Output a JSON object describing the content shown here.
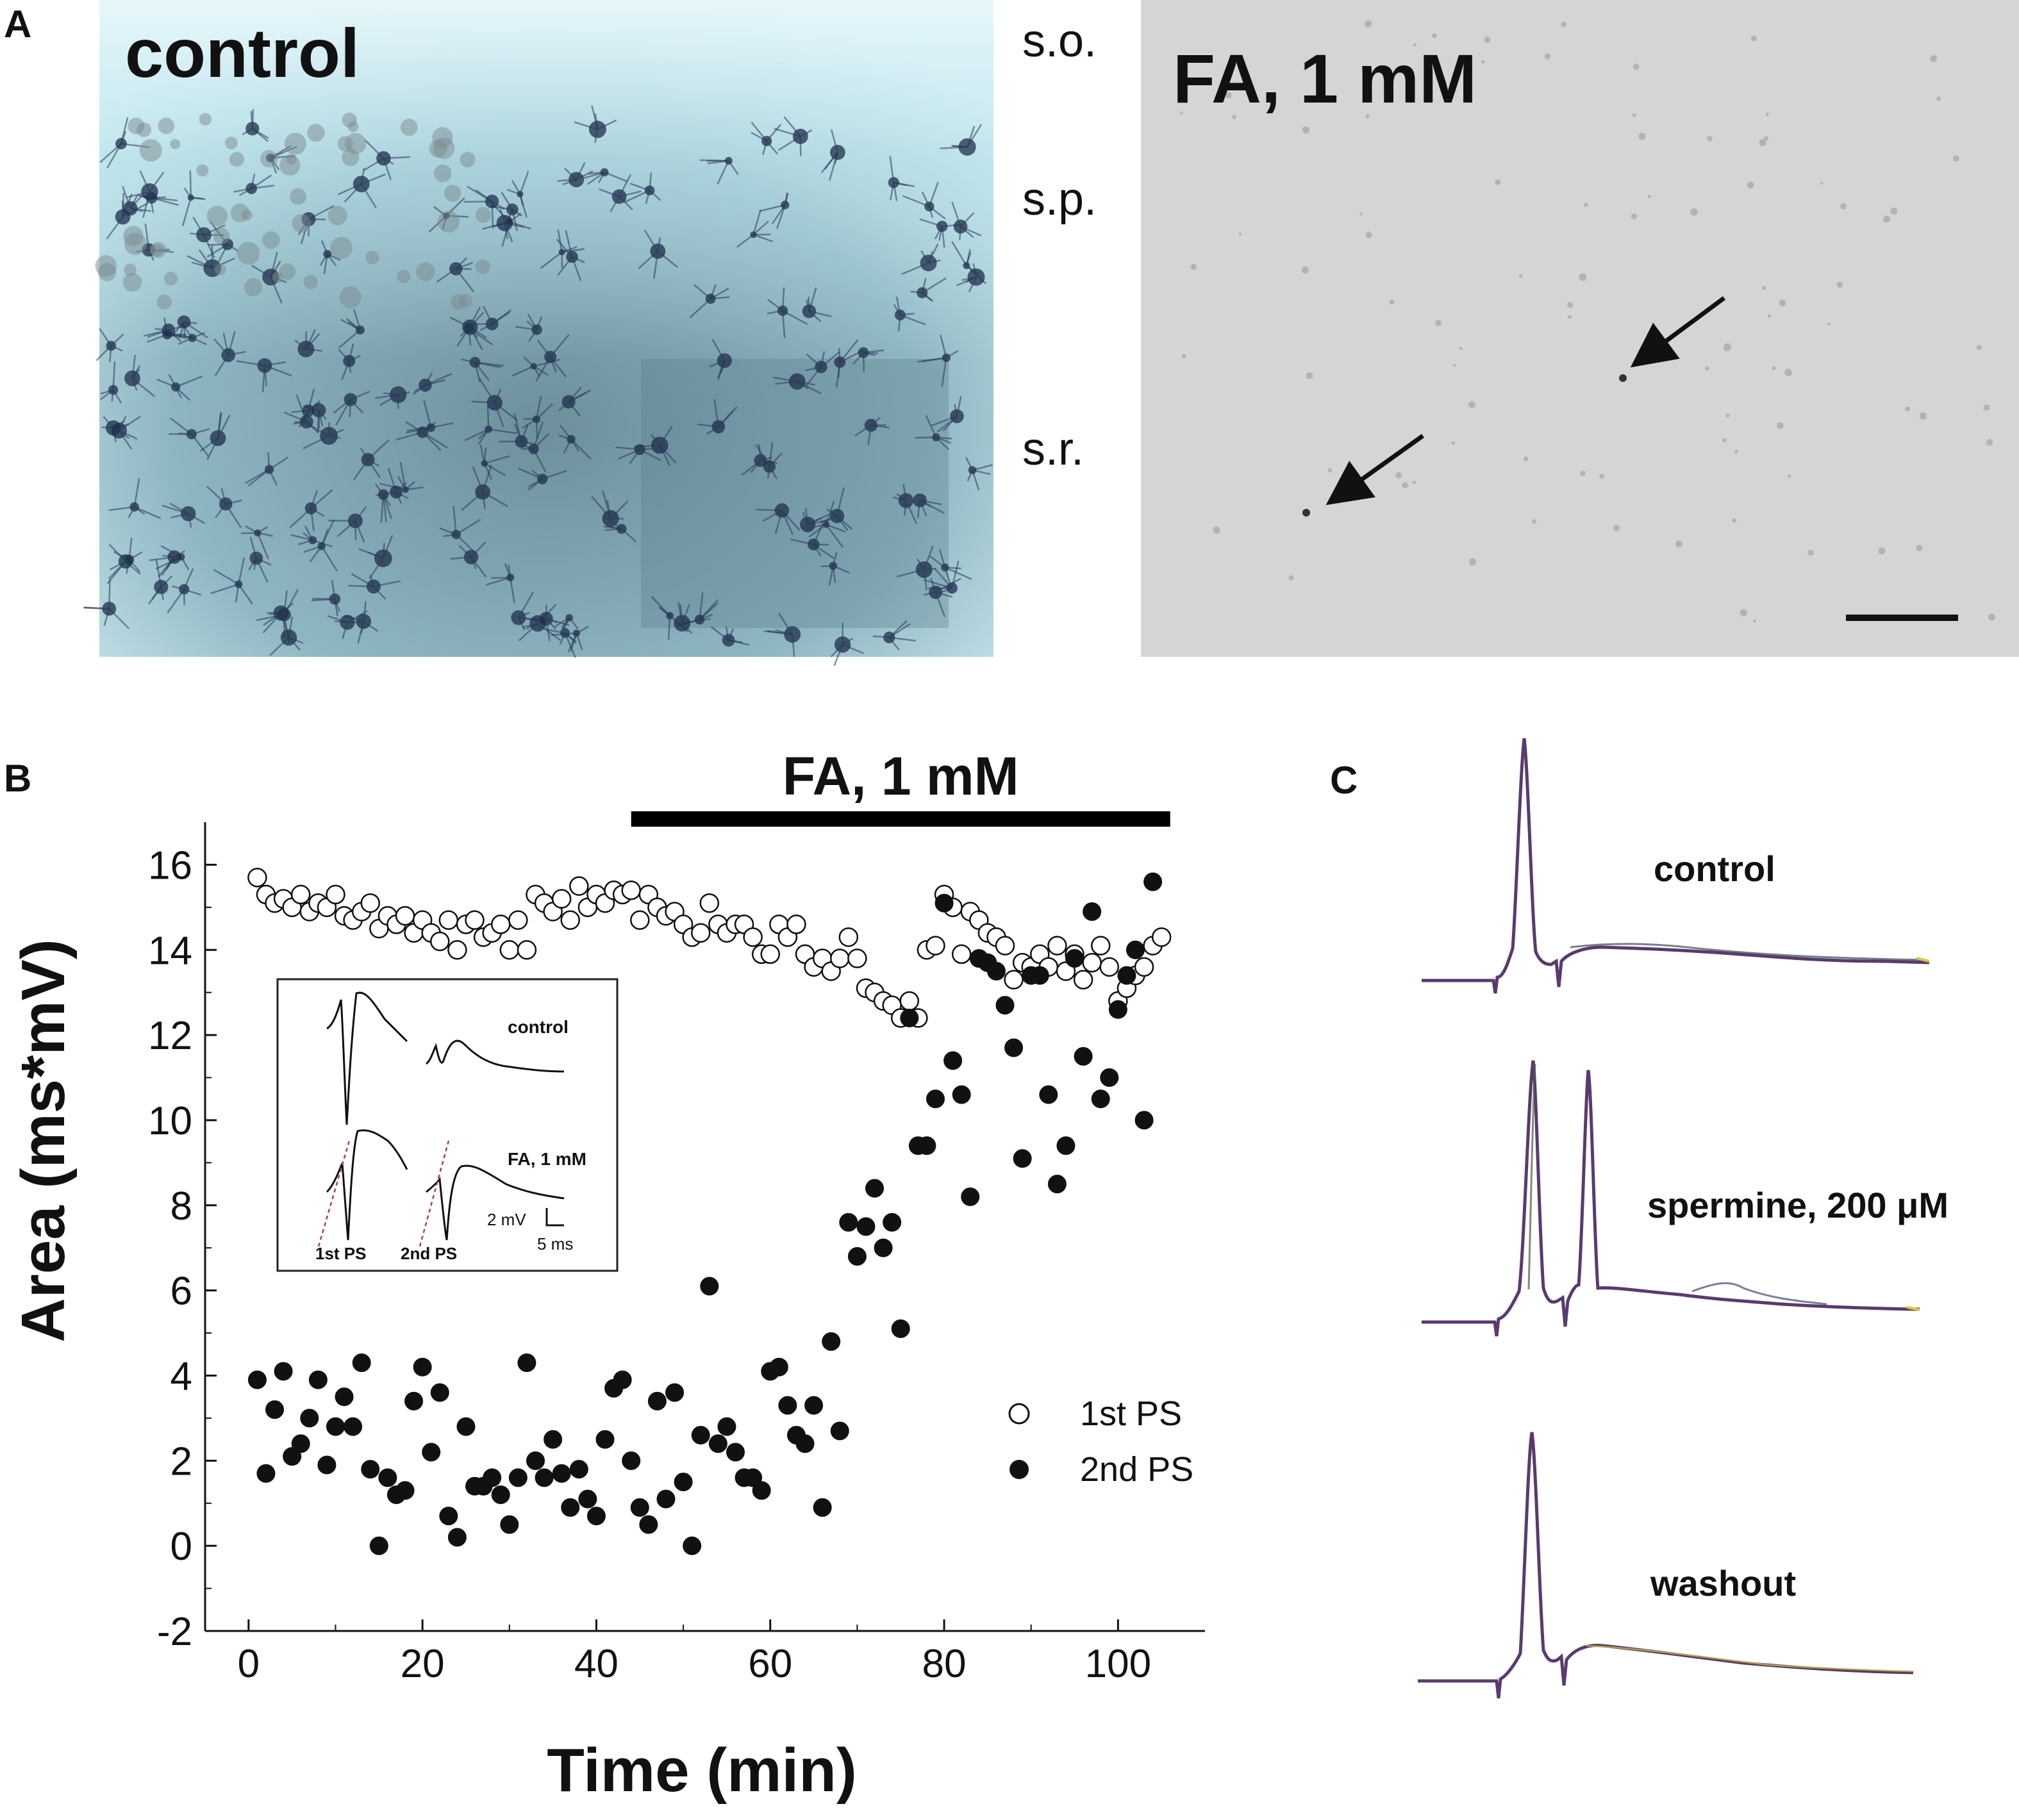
{
  "panels": {
    "A": {
      "letter": "A",
      "left_label": "control",
      "right_label": "FA, 1 mM",
      "layers": [
        "s.o.",
        "s.p.",
        "s.r."
      ]
    },
    "B": {
      "letter": "B",
      "bar_label": "FA, 1 mM",
      "inset": {
        "control_label": "control",
        "fa_label": "FA, 1 mM",
        "first_label": "1st PS",
        "second_label": "2nd PS",
        "scale_mv": "2 mV",
        "scale_ms": "5 ms"
      }
    },
    "C": {
      "letter": "C",
      "trace_labels": [
        "control",
        "spermine, 200 μM",
        "washout"
      ]
    }
  },
  "colors": {
    "trace": "#5a3a6e",
    "control_tissue": "#6f98a8",
    "fa_tissue": "#d6d6d6"
  },
  "chart_data": {
    "type": "scatter",
    "xlabel": "Time (min)",
    "ylabel": "Area (ms*mV)",
    "xlim": [
      -5,
      110
    ],
    "ylim": [
      -2,
      17
    ],
    "xticks": [
      0,
      20,
      40,
      60,
      80,
      100
    ],
    "yticks": [
      -2,
      0,
      2,
      4,
      6,
      8,
      10,
      12,
      14,
      16
    ],
    "treatment_bar": {
      "label": "FA, 1 mM",
      "start": 44,
      "end": 106
    },
    "legend_position": "bottom-right",
    "series": [
      {
        "name": "1st PS",
        "marker": "open-circle",
        "points": [
          [
            1,
            15.7
          ],
          [
            2,
            15.3
          ],
          [
            3,
            15.1
          ],
          [
            4,
            15.2
          ],
          [
            5,
            15.0
          ],
          [
            6,
            15.3
          ],
          [
            7,
            14.9
          ],
          [
            8,
            15.1
          ],
          [
            9,
            15.0
          ],
          [
            10,
            15.3
          ],
          [
            11,
            14.8
          ],
          [
            12,
            14.7
          ],
          [
            13,
            14.9
          ],
          [
            14,
            15.1
          ],
          [
            15,
            14.5
          ],
          [
            16,
            14.8
          ],
          [
            17,
            14.6
          ],
          [
            18,
            14.8
          ],
          [
            19,
            14.4
          ],
          [
            20,
            14.7
          ],
          [
            21,
            14.4
          ],
          [
            22,
            14.2
          ],
          [
            23,
            14.7
          ],
          [
            24,
            14.0
          ],
          [
            25,
            14.6
          ],
          [
            26,
            14.7
          ],
          [
            27,
            14.3
          ],
          [
            28,
            14.4
          ],
          [
            29,
            14.6
          ],
          [
            30,
            14.0
          ],
          [
            31,
            14.7
          ],
          [
            32,
            14.0
          ],
          [
            33,
            15.3
          ],
          [
            34,
            15.1
          ],
          [
            35,
            14.9
          ],
          [
            36,
            15.2
          ],
          [
            37,
            14.7
          ],
          [
            38,
            15.5
          ],
          [
            39,
            15.0
          ],
          [
            40,
            15.3
          ],
          [
            41,
            15.1
          ],
          [
            42,
            15.4
          ],
          [
            43,
            15.3
          ],
          [
            44,
            15.4
          ],
          [
            45,
            14.7
          ],
          [
            46,
            15.3
          ],
          [
            47,
            15.0
          ],
          [
            48,
            14.8
          ],
          [
            49,
            14.9
          ],
          [
            50,
            14.6
          ],
          [
            51,
            14.3
          ],
          [
            52,
            14.4
          ],
          [
            53,
            15.1
          ],
          [
            54,
            14.6
          ],
          [
            55,
            14.4
          ],
          [
            56,
            14.6
          ],
          [
            57,
            14.6
          ],
          [
            58,
            14.3
          ],
          [
            59,
            13.9
          ],
          [
            60,
            13.9
          ],
          [
            61,
            14.6
          ],
          [
            62,
            14.3
          ],
          [
            63,
            14.6
          ],
          [
            64,
            13.9
          ],
          [
            65,
            13.6
          ],
          [
            66,
            13.8
          ],
          [
            67,
            13.5
          ],
          [
            68,
            13.8
          ],
          [
            69,
            14.3
          ],
          [
            70,
            13.8
          ],
          [
            71,
            13.1
          ],
          [
            72,
            13.0
          ],
          [
            73,
            12.8
          ],
          [
            74,
            12.7
          ],
          [
            75,
            12.4
          ],
          [
            76,
            12.8
          ],
          [
            77,
            12.4
          ],
          [
            78,
            14.0
          ],
          [
            79,
            14.1
          ],
          [
            80,
            15.3
          ],
          [
            81,
            15.0
          ],
          [
            82,
            13.9
          ],
          [
            83,
            14.9
          ],
          [
            84,
            14.7
          ],
          [
            85,
            14.4
          ],
          [
            86,
            14.3
          ],
          [
            87,
            14.1
          ],
          [
            88,
            13.3
          ],
          [
            89,
            13.7
          ],
          [
            90,
            13.6
          ],
          [
            91,
            13.9
          ],
          [
            92,
            13.6
          ],
          [
            93,
            14.1
          ],
          [
            94,
            13.5
          ],
          [
            95,
            13.9
          ],
          [
            96,
            13.3
          ],
          [
            97,
            13.7
          ],
          [
            98,
            14.1
          ],
          [
            99,
            13.6
          ],
          [
            100,
            12.8
          ],
          [
            101,
            13.1
          ],
          [
            102,
            13.4
          ],
          [
            103,
            13.6
          ],
          [
            104,
            14.1
          ],
          [
            105,
            14.3
          ]
        ]
      },
      {
        "name": "2nd PS",
        "marker": "filled-circle",
        "points": [
          [
            1,
            3.9
          ],
          [
            2,
            1.7
          ],
          [
            3,
            3.2
          ],
          [
            4,
            4.1
          ],
          [
            5,
            2.1
          ],
          [
            6,
            2.4
          ],
          [
            7,
            3.0
          ],
          [
            8,
            3.9
          ],
          [
            9,
            1.9
          ],
          [
            10,
            2.8
          ],
          [
            11,
            3.5
          ],
          [
            12,
            2.8
          ],
          [
            13,
            4.3
          ],
          [
            14,
            1.8
          ],
          [
            15,
            0.0
          ],
          [
            16,
            1.6
          ],
          [
            17,
            1.2
          ],
          [
            18,
            1.3
          ],
          [
            19,
            3.4
          ],
          [
            20,
            4.2
          ],
          [
            21,
            2.2
          ],
          [
            22,
            3.6
          ],
          [
            23,
            0.7
          ],
          [
            24,
            0.2
          ],
          [
            25,
            2.8
          ],
          [
            26,
            1.4
          ],
          [
            27,
            1.4
          ],
          [
            28,
            1.6
          ],
          [
            29,
            1.2
          ],
          [
            30,
            0.5
          ],
          [
            31,
            1.6
          ],
          [
            32,
            4.3
          ],
          [
            33,
            2.0
          ],
          [
            34,
            1.6
          ],
          [
            35,
            2.5
          ],
          [
            36,
            1.7
          ],
          [
            37,
            0.9
          ],
          [
            38,
            1.8
          ],
          [
            39,
            1.1
          ],
          [
            40,
            0.7
          ],
          [
            41,
            2.5
          ],
          [
            42,
            3.7
          ],
          [
            43,
            3.9
          ],
          [
            44,
            2.0
          ],
          [
            45,
            0.9
          ],
          [
            46,
            0.5
          ],
          [
            47,
            3.4
          ],
          [
            48,
            1.1
          ],
          [
            49,
            3.6
          ],
          [
            50,
            1.5
          ],
          [
            51,
            0.0
          ],
          [
            52,
            2.6
          ],
          [
            53,
            6.1
          ],
          [
            54,
            2.4
          ],
          [
            55,
            2.8
          ],
          [
            56,
            2.2
          ],
          [
            57,
            1.6
          ],
          [
            58,
            1.6
          ],
          [
            59,
            1.3
          ],
          [
            60,
            4.1
          ],
          [
            61,
            4.2
          ],
          [
            62,
            3.3
          ],
          [
            63,
            2.6
          ],
          [
            64,
            2.4
          ],
          [
            65,
            3.3
          ],
          [
            66,
            0.9
          ],
          [
            67,
            4.8
          ],
          [
            68,
            2.7
          ],
          [
            69,
            7.6
          ],
          [
            70,
            6.8
          ],
          [
            71,
            7.5
          ],
          [
            72,
            8.4
          ],
          [
            73,
            7.0
          ],
          [
            74,
            7.6
          ],
          [
            75,
            5.1
          ],
          [
            76,
            12.4
          ],
          [
            77,
            9.4
          ],
          [
            78,
            9.4
          ],
          [
            79,
            10.5
          ],
          [
            80,
            15.1
          ],
          [
            81,
            11.4
          ],
          [
            82,
            10.6
          ],
          [
            83,
            8.2
          ],
          [
            84,
            13.8
          ],
          [
            85,
            13.7
          ],
          [
            86,
            13.5
          ],
          [
            87,
            12.7
          ],
          [
            88,
            11.7
          ],
          [
            89,
            9.1
          ],
          [
            90,
            13.4
          ],
          [
            91,
            13.4
          ],
          [
            92,
            10.6
          ],
          [
            93,
            8.5
          ],
          [
            94,
            9.4
          ],
          [
            95,
            13.8
          ],
          [
            96,
            11.5
          ],
          [
            97,
            14.9
          ],
          [
            98,
            10.5
          ],
          [
            99,
            11.0
          ],
          [
            100,
            12.6
          ],
          [
            101,
            13.4
          ],
          [
            102,
            14.0
          ],
          [
            103,
            10.0
          ],
          [
            104,
            15.6
          ]
        ]
      }
    ]
  }
}
